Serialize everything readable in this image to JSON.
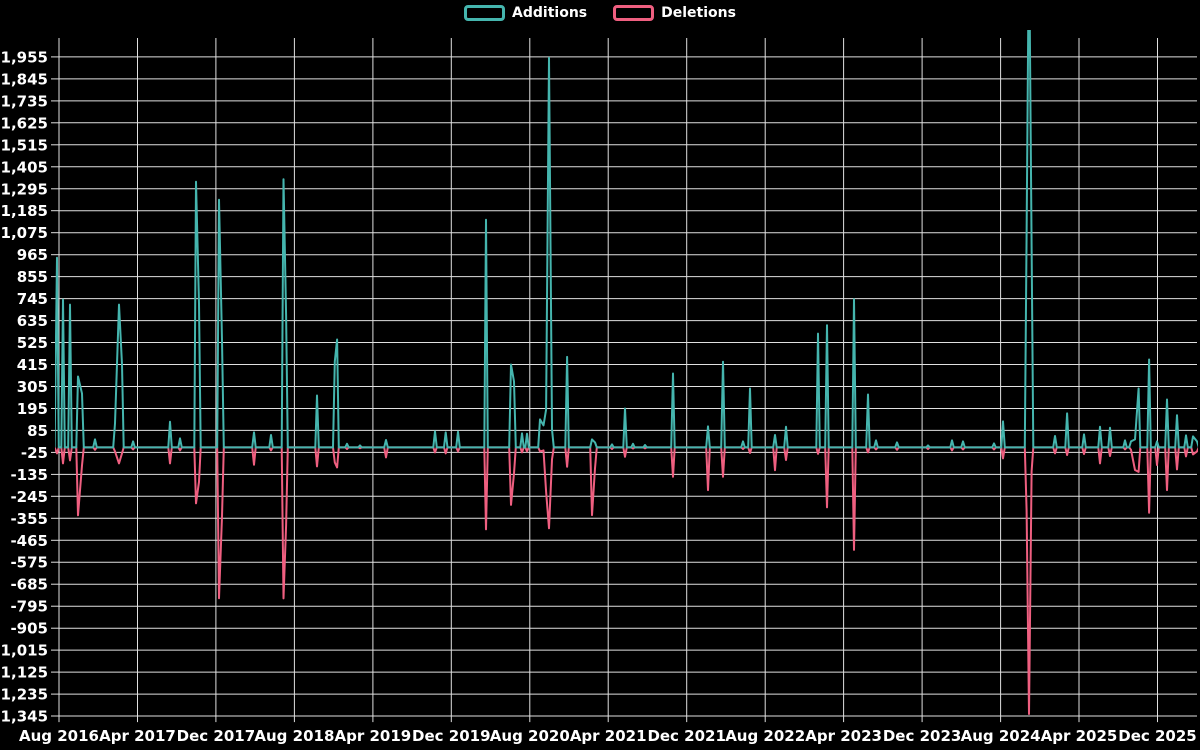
{
  "legend": {
    "additions_label": "Additions",
    "deletions_label": "Deletions"
  },
  "colors": {
    "additions": "#45b5ae",
    "deletions": "#ef5f80",
    "background": "#000000",
    "grid": "#e0e0e0",
    "text": "#ffffff"
  },
  "y_axis": {
    "max": 1955,
    "min": -1345,
    "step": 110,
    "labels": [
      "1,955",
      "1,845",
      "1,735",
      "1,625",
      "1,515",
      "1,405",
      "1,295",
      "1,185",
      "1,075",
      "965",
      "855",
      "745",
      "635",
      "525",
      "415",
      "305",
      "195",
      "85",
      "-25",
      "-135",
      "-245",
      "-355",
      "-465",
      "-575",
      "-685",
      "-795",
      "-905",
      "-1,015",
      "-1,125",
      "-1,235",
      "-1,345"
    ]
  },
  "x_axis": {
    "months_per_label": 8,
    "labels": [
      "Aug 2016",
      "Apr 2017",
      "Dec 2017",
      "Aug 2018",
      "Apr 2019",
      "Dec 2019",
      "Aug 2020",
      "Apr 2021",
      "Dec 2021",
      "Aug 2022",
      "Apr 2023",
      "Dec 2023",
      "Aug 2024",
      "Apr 2025",
      "Dec 2025"
    ]
  },
  "chart_data": {
    "type": "line",
    "title": "",
    "xlabel": "",
    "ylabel": "",
    "x_unit": "months since Aug 2016 (weekly code-frequency style spikes)",
    "ylim": [
      -1345,
      1955
    ],
    "x_tick_interval_months": 8,
    "grid": true,
    "legend_position": "top-center",
    "series": [
      {
        "name": "Additions",
        "color": "#45b5ae",
        "sign": "positive"
      },
      {
        "name": "Deletions",
        "color": "#ef5f80",
        "sign": "negative"
      }
    ],
    "note": "events = [month_offset, additions, deletions]; line sits at 0 between events; the Nov 2024 additions spike is clipped by the top of the plot",
    "events": [
      [
        -0.2,
        950,
        -30
      ],
      [
        0.41,
        740,
        -80
      ],
      [
        1.12,
        715,
        -65
      ],
      [
        1.94,
        355,
        -340
      ],
      [
        2.35,
        270,
        -90
      ],
      [
        3.67,
        40,
        -12
      ],
      [
        5.71,
        120,
        -20
      ],
      [
        6.12,
        715,
        -80
      ],
      [
        6.42,
        415,
        -30
      ],
      [
        7.55,
        30,
        -10
      ],
      [
        11.32,
        128,
        -80
      ],
      [
        12.34,
        45,
        -15
      ],
      [
        13.97,
        1330,
        -280
      ],
      [
        14.27,
        720,
        -172
      ],
      [
        16.31,
        1240,
        -755
      ],
      [
        16.62,
        535,
        -345
      ],
      [
        19.88,
        75,
        -87
      ],
      [
        21.62,
        62,
        -15
      ],
      [
        22.89,
        1343,
        -756
      ],
      [
        23.15,
        660,
        -390
      ],
      [
        26.31,
        260,
        -95
      ],
      [
        28.12,
        430,
        -75
      ],
      [
        28.35,
        540,
        -100
      ],
      [
        29.36,
        18,
        -8
      ],
      [
        30.69,
        10,
        -4
      ],
      [
        33.34,
        37,
        -50
      ],
      [
        38.34,
        80,
        -25
      ],
      [
        39.43,
        75,
        -30
      ],
      [
        40.68,
        78,
        -20
      ],
      [
        43.54,
        1140,
        -410
      ],
      [
        46.08,
        415,
        -288
      ],
      [
        46.39,
        330,
        -130
      ],
      [
        47.21,
        70,
        -25
      ],
      [
        47.72,
        68,
        -20
      ],
      [
        49.04,
        140,
        -20
      ],
      [
        49.4,
        110,
        -15
      ],
      [
        49.66,
        190,
        -222
      ],
      [
        49.96,
        1950,
        -405
      ],
      [
        50.27,
        90,
        -60
      ],
      [
        51.8,
        453,
        -97
      ],
      [
        54.34,
        40,
        -339
      ],
      [
        54.65,
        25,
        -105
      ],
      [
        56.38,
        15,
        -8
      ],
      [
        57.71,
        195,
        -47
      ],
      [
        58.52,
        18,
        -6
      ],
      [
        59.75,
        12,
        -5
      ],
      [
        62.6,
        370,
        -147
      ],
      [
        66.17,
        105,
        -214
      ],
      [
        67.7,
        429,
        -147
      ],
      [
        69.74,
        30,
        -8
      ],
      [
        70.45,
        295,
        -28
      ],
      [
        73.0,
        62,
        -114
      ],
      [
        74.12,
        103,
        -63
      ],
      [
        77.39,
        570,
        -32
      ],
      [
        78.3,
        612,
        -300
      ],
      [
        81.06,
        742,
        -513
      ],
      [
        82.48,
        265,
        -25
      ],
      [
        83.3,
        35,
        -10
      ],
      [
        85.44,
        25,
        -12
      ],
      [
        88.6,
        10,
        -8
      ],
      [
        91.05,
        35,
        -15
      ],
      [
        92.17,
        30,
        -10
      ],
      [
        95.33,
        20,
        -10
      ],
      [
        96.25,
        130,
        -55
      ],
      [
        98.65,
        1070,
        -315
      ],
      [
        98.9,
        2600,
        -1335
      ],
      [
        99.16,
        1005,
        -120
      ],
      [
        101.55,
        57,
        -30
      ],
      [
        102.78,
        170,
        -38
      ],
      [
        104.51,
        65,
        -33
      ],
      [
        106.14,
        103,
        -80
      ],
      [
        107.16,
        98,
        -43
      ],
      [
        108.69,
        35,
        -10
      ],
      [
        109.3,
        30,
        -12
      ],
      [
        109.71,
        40,
        -113
      ],
      [
        110.07,
        295,
        -122
      ],
      [
        111.14,
        440,
        -327
      ],
      [
        111.95,
        30,
        -88
      ],
      [
        112.97,
        240,
        -214
      ],
      [
        113.99,
        161,
        -110
      ],
      [
        114.91,
        60,
        -45
      ],
      [
        115.62,
        55,
        -35
      ],
      [
        116.03,
        30,
        -20
      ]
    ]
  }
}
